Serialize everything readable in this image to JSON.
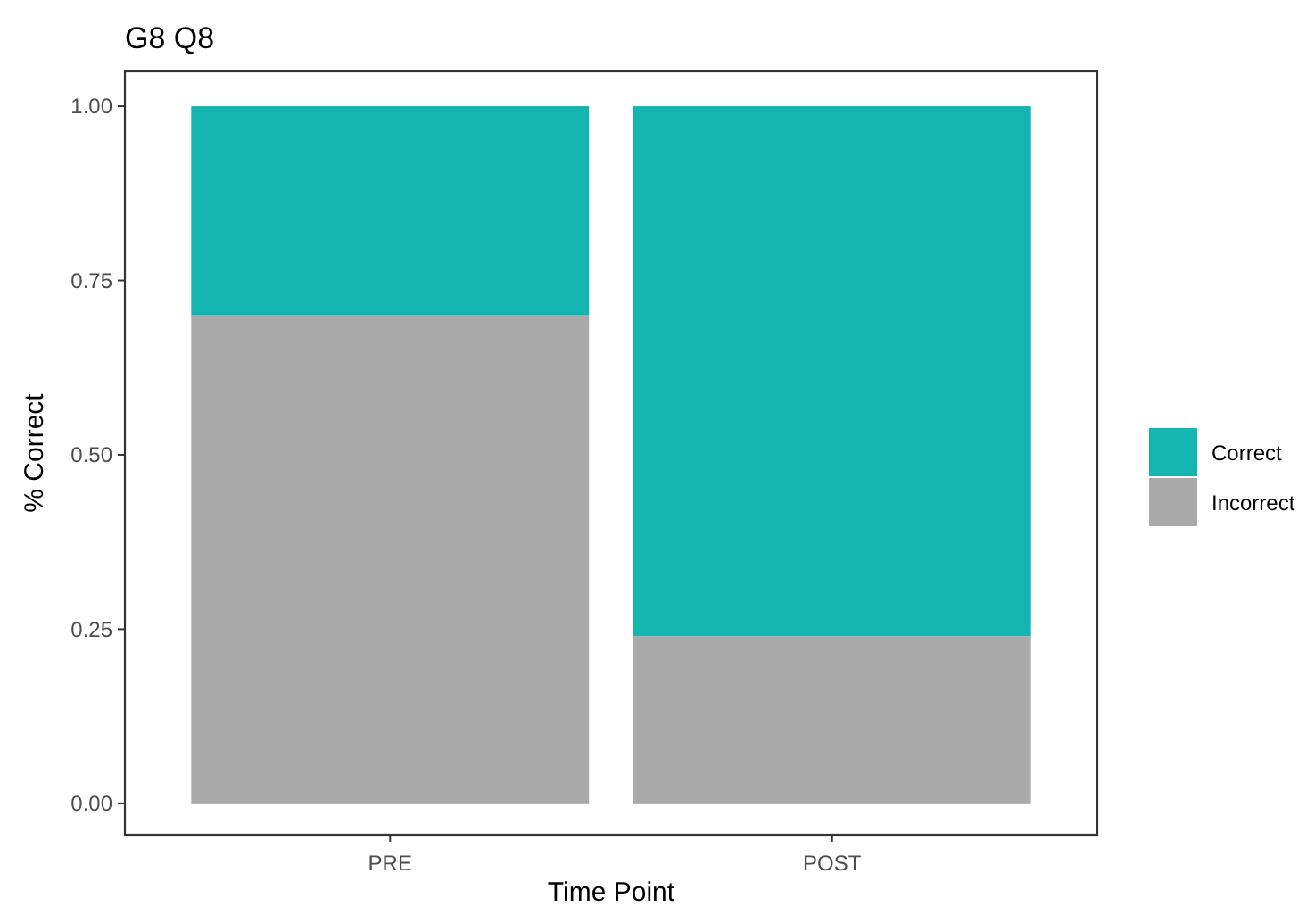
{
  "chart_data": {
    "type": "bar",
    "title": "G8 Q8",
    "xlabel": "Time Point",
    "ylabel": "% Correct",
    "categories": [
      "PRE",
      "POST"
    ],
    "stacked": true,
    "legend": "right",
    "series": [
      {
        "name": "Incorrect",
        "color": "#aaaaaa",
        "values": [
          0.7,
          0.24
        ]
      },
      {
        "name": "Correct",
        "color": "#14b4b0",
        "values": [
          0.3,
          0.76
        ]
      }
    ],
    "ylim": [
      -0.045,
      1.05
    ],
    "yticks": [
      {
        "value": 0,
        "label": "0.00"
      },
      {
        "value": 0.25,
        "label": "0.25"
      },
      {
        "value": 0.5,
        "label": "0.50"
      },
      {
        "value": 0.75,
        "label": "0.75"
      },
      {
        "value": 1,
        "label": "1.00"
      }
    ]
  }
}
